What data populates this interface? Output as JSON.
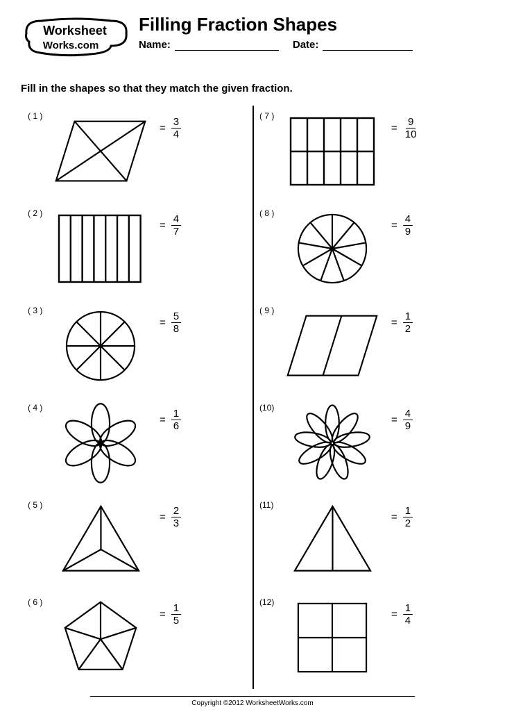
{
  "header": {
    "logo_text_top": "Worksheet",
    "logo_text_bottom": "Works.com",
    "title": "Filling Fraction Shapes",
    "name_label": "Name:",
    "date_label": "Date:"
  },
  "instructions": "Fill in the shapes so that they match the given fraction.",
  "equals": "=",
  "problems_left": [
    {
      "n": "( 1 )",
      "shape": "rhombus4",
      "num": "3",
      "den": "4"
    },
    {
      "n": "( 2 )",
      "shape": "rect7",
      "num": "4",
      "den": "7"
    },
    {
      "n": "( 3 )",
      "shape": "circle8",
      "num": "5",
      "den": "8"
    },
    {
      "n": "( 4 )",
      "shape": "flower6",
      "num": "1",
      "den": "6"
    },
    {
      "n": "( 5 )",
      "shape": "tri3",
      "num": "2",
      "den": "3"
    },
    {
      "n": "( 6 )",
      "shape": "pent5",
      "num": "1",
      "den": "5"
    }
  ],
  "problems_right": [
    {
      "n": "( 7 )",
      "shape": "rect10",
      "num": "9",
      "den": "10"
    },
    {
      "n": "( 8 )",
      "shape": "circle9",
      "num": "4",
      "den": "9"
    },
    {
      "n": "( 9 )",
      "shape": "para2",
      "num": "1",
      "den": "2"
    },
    {
      "n": "(10)",
      "shape": "flower9",
      "num": "4",
      "den": "9"
    },
    {
      "n": "(11)",
      "shape": "tri2",
      "num": "1",
      "den": "2"
    },
    {
      "n": "(12)",
      "shape": "square4",
      "num": "1",
      "den": "4"
    }
  ],
  "footer": "Copyright ©2012 WorksheetWorks.com",
  "colors": {
    "line": "#000000",
    "bg": "#ffffff"
  }
}
